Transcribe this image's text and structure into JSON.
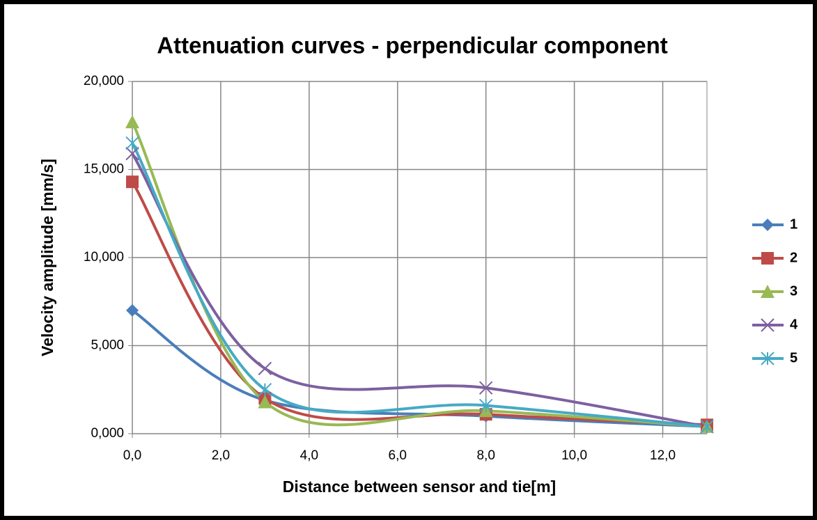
{
  "chart_data": {
    "type": "line",
    "title": "Attenuation curves - perpendicular component",
    "x_label": "Distance between sensor and tie[m]",
    "y_label": "Velocity amplitude  [mm/s]",
    "x": [
      0,
      3,
      8,
      13
    ],
    "series": [
      {
        "name": "1",
        "color": "#4a7ebb",
        "marker": "diamond",
        "values": [
          7.0,
          1.9,
          1.0,
          0.4
        ]
      },
      {
        "name": "2",
        "color": "#be4b48",
        "marker": "square",
        "values": [
          14.3,
          2.0,
          1.1,
          0.5
        ]
      },
      {
        "name": "3",
        "color": "#98b954",
        "marker": "triangle",
        "values": [
          17.7,
          1.8,
          1.3,
          0.4
        ]
      },
      {
        "name": "4",
        "color": "#7d60a0",
        "marker": "x",
        "values": [
          15.9,
          3.7,
          2.6,
          0.4
        ]
      },
      {
        "name": "5",
        "color": "#46aac5",
        "marker": "star",
        "values": [
          16.5,
          2.5,
          1.6,
          0.4
        ]
      }
    ],
    "smooth": true,
    "xlim": [
      0,
      13
    ],
    "xticks": [
      {
        "value": 0,
        "label": "0,0"
      },
      {
        "value": 2,
        "label": "2,0"
      },
      {
        "value": 4,
        "label": "4,0"
      },
      {
        "value": 6,
        "label": "6,0"
      },
      {
        "value": 8,
        "label": "8,0"
      },
      {
        "value": 10,
        "label": "10,0"
      },
      {
        "value": 12,
        "label": "12,0"
      }
    ],
    "ylim": [
      0,
      20
    ],
    "yticks": [
      {
        "value": 0,
        "label": "0,000"
      },
      {
        "value": 5,
        "label": "5,000"
      },
      {
        "value": 10,
        "label": "10,000"
      },
      {
        "value": 15,
        "label": "15,000"
      },
      {
        "value": 20,
        "label": "20,000"
      }
    ],
    "grid": true,
    "legend": "right"
  }
}
